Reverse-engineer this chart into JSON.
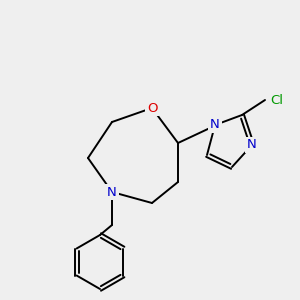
{
  "bg_color": "#efefef",
  "bond_color": "#000000",
  "bond_width": 1.4,
  "atom_colors": {
    "N": "#0000cc",
    "O": "#dd0000",
    "Cl": "#009900",
    "C": "#000000"
  },
  "font_size_atom": 8.5
}
